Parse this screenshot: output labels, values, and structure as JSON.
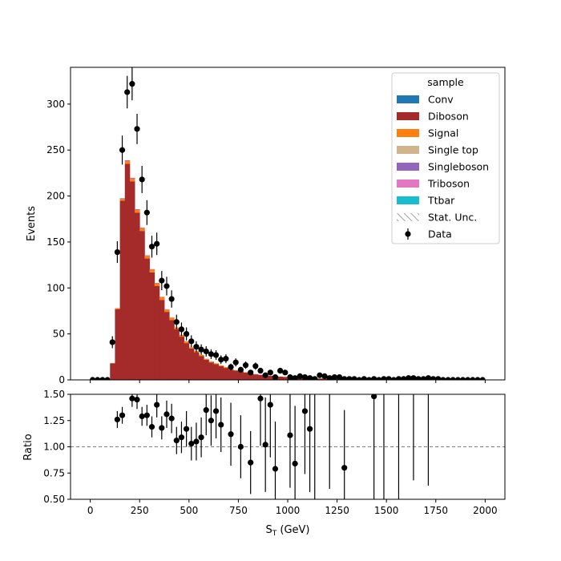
{
  "chart_data": [
    {
      "type": "bar",
      "stacked": true,
      "ylabel": "Events",
      "xlim": [
        -100,
        2100
      ],
      "ylim": [
        0,
        340
      ],
      "x_ticks": [
        0,
        250,
        500,
        750,
        1000,
        1250,
        1500,
        1750,
        2000
      ],
      "y_ticks": [
        0,
        50,
        100,
        150,
        200,
        250,
        300
      ],
      "bin_width": 25,
      "legend": {
        "title": "sample",
        "placement": "upper right",
        "entries": [
          {
            "label": "Conv",
            "color": "#1f77b4",
            "kind": "patch"
          },
          {
            "label": "Diboson",
            "color": "#a52a2a",
            "kind": "patch"
          },
          {
            "label": "Signal",
            "color": "#ff7f0e",
            "kind": "patch"
          },
          {
            "label": "Single top",
            "color": "#d2b48c",
            "kind": "patch"
          },
          {
            "label": "Singleboson",
            "color": "#9467bd",
            "kind": "patch"
          },
          {
            "label": "Triboson",
            "color": "#e377c2",
            "kind": "patch"
          },
          {
            "label": "Ttbar",
            "color": "#17becf",
            "kind": "patch"
          },
          {
            "label": "Stat. Unc.",
            "color": "#808080",
            "kind": "hatch"
          },
          {
            "label": "Data",
            "color": "#000000",
            "kind": "errorbar"
          }
        ]
      },
      "mc_diboson": [
        [
          100,
          18
        ],
        [
          125,
          77
        ],
        [
          150,
          195
        ],
        [
          175,
          235
        ],
        [
          200,
          216
        ],
        [
          225,
          182
        ],
        [
          250,
          162
        ],
        [
          275,
          132
        ],
        [
          300,
          117
        ],
        [
          325,
          102
        ],
        [
          350,
          87
        ],
        [
          375,
          74
        ],
        [
          400,
          65
        ],
        [
          425,
          55
        ],
        [
          450,
          47
        ],
        [
          475,
          40
        ],
        [
          500,
          34
        ],
        [
          525,
          30
        ],
        [
          550,
          26
        ],
        [
          575,
          22
        ],
        [
          600,
          19
        ],
        [
          625,
          17
        ],
        [
          650,
          15
        ],
        [
          675,
          13
        ],
        [
          700,
          11
        ],
        [
          725,
          10
        ],
        [
          750,
          9
        ],
        [
          775,
          8
        ],
        [
          800,
          7
        ],
        [
          825,
          6
        ],
        [
          850,
          5.5
        ],
        [
          875,
          5
        ],
        [
          900,
          4.5
        ],
        [
          925,
          4
        ],
        [
          950,
          3.6
        ],
        [
          975,
          3.2
        ],
        [
          1000,
          2.9
        ],
        [
          1025,
          2.6
        ],
        [
          1050,
          2.3
        ],
        [
          1075,
          2.1
        ],
        [
          1100,
          1.9
        ],
        [
          1125,
          1.7
        ],
        [
          1150,
          1.5
        ],
        [
          1175,
          1.4
        ],
        [
          1200,
          1.3
        ],
        [
          1225,
          1.2
        ],
        [
          1250,
          1.1
        ],
        [
          1275,
          1.0
        ],
        [
          1300,
          0.9
        ],
        [
          1325,
          0.8
        ],
        [
          1350,
          0.8
        ],
        [
          1375,
          0.7
        ],
        [
          1400,
          0.7
        ],
        [
          1425,
          0.6
        ],
        [
          1450,
          0.6
        ],
        [
          1475,
          0.5
        ],
        [
          1500,
          0.5
        ],
        [
          1525,
          0.5
        ],
        [
          1550,
          0.4
        ],
        [
          1575,
          0.4
        ],
        [
          1600,
          0.4
        ],
        [
          1625,
          0.3
        ],
        [
          1650,
          0.3
        ],
        [
          1675,
          0.3
        ],
        [
          1700,
          0.3
        ],
        [
          1725,
          0.2
        ],
        [
          1750,
          0.2
        ],
        [
          1775,
          0.2
        ],
        [
          1800,
          0.2
        ],
        [
          1825,
          0.2
        ],
        [
          1850,
          0.2
        ],
        [
          1875,
          0.1
        ],
        [
          1900,
          0.1
        ],
        [
          1925,
          0.1
        ],
        [
          1950,
          0.1
        ],
        [
          1975,
          0.1
        ]
      ],
      "mc_signal": [
        [
          100,
          0.3
        ],
        [
          125,
          1
        ],
        [
          150,
          2
        ],
        [
          175,
          3
        ],
        [
          200,
          3
        ],
        [
          225,
          3
        ],
        [
          250,
          3
        ],
        [
          275,
          3
        ],
        [
          300,
          3
        ],
        [
          325,
          3
        ],
        [
          350,
          3
        ],
        [
          375,
          2.5
        ],
        [
          400,
          2.5
        ],
        [
          425,
          2
        ],
        [
          450,
          2
        ],
        [
          475,
          2
        ],
        [
          500,
          1.5
        ],
        [
          525,
          1.5
        ],
        [
          550,
          1.2
        ],
        [
          575,
          1
        ],
        [
          600,
          1
        ],
        [
          625,
          1
        ],
        [
          650,
          0.8
        ],
        [
          675,
          0.8
        ],
        [
          700,
          0.6
        ],
        [
          725,
          0.5
        ],
        [
          750,
          0.5
        ],
        [
          775,
          0.4
        ],
        [
          800,
          0.4
        ],
        [
          825,
          0.3
        ]
      ],
      "mc_singleboson": [
        [
          150,
          0.6
        ],
        [
          175,
          0.8
        ],
        [
          200,
          0.8
        ],
        [
          225,
          0.7
        ],
        [
          250,
          0.6
        ],
        [
          275,
          0.5
        ],
        [
          300,
          0.5
        ],
        [
          325,
          0.4
        ],
        [
          350,
          0.4
        ],
        [
          375,
          0.3
        ],
        [
          400,
          0.3
        ]
      ],
      "data": [
        {
          "x": 12,
          "y": 0,
          "err": 0
        },
        {
          "x": 37,
          "y": 0,
          "err": 0
        },
        {
          "x": 62,
          "y": 0,
          "err": 0
        },
        {
          "x": 87,
          "y": 0,
          "err": 0
        },
        {
          "x": 112,
          "y": 41,
          "err": 6.5
        },
        {
          "x": 137,
          "y": 139,
          "err": 11.8
        },
        {
          "x": 162,
          "y": 250,
          "err": 15.8
        },
        {
          "x": 187,
          "y": 313,
          "err": 17.7
        },
        {
          "x": 212,
          "y": 322,
          "err": 17.9
        },
        {
          "x": 237,
          "y": 273,
          "err": 16.5
        },
        {
          "x": 262,
          "y": 218,
          "err": 14.8
        },
        {
          "x": 287,
          "y": 182,
          "err": 13.5
        },
        {
          "x": 312,
          "y": 145,
          "err": 12.0
        },
        {
          "x": 337,
          "y": 148,
          "err": 12.2
        },
        {
          "x": 362,
          "y": 108,
          "err": 10.4
        },
        {
          "x": 387,
          "y": 102,
          "err": 10.1
        },
        {
          "x": 412,
          "y": 88,
          "err": 9.4
        },
        {
          "x": 437,
          "y": 63,
          "err": 7.9
        },
        {
          "x": 462,
          "y": 55,
          "err": 7.4
        },
        {
          "x": 487,
          "y": 50,
          "err": 7.1
        },
        {
          "x": 512,
          "y": 42,
          "err": 6.5
        },
        {
          "x": 537,
          "y": 36,
          "err": 6.0
        },
        {
          "x": 562,
          "y": 33,
          "err": 5.7
        },
        {
          "x": 587,
          "y": 31,
          "err": 5.6
        },
        {
          "x": 612,
          "y": 28,
          "err": 5.3
        },
        {
          "x": 637,
          "y": 27,
          "err": 5.2
        },
        {
          "x": 662,
          "y": 22,
          "err": 4.7
        },
        {
          "x": 687,
          "y": 23,
          "err": 4.8
        },
        {
          "x": 712,
          "y": 14,
          "err": 3.7
        },
        {
          "x": 737,
          "y": 19,
          "err": 4.4
        },
        {
          "x": 762,
          "y": 11,
          "err": 3.3
        },
        {
          "x": 787,
          "y": 16,
          "err": 4.0
        },
        {
          "x": 812,
          "y": 8,
          "err": 2.8
        },
        {
          "x": 837,
          "y": 15,
          "err": 3.9
        },
        {
          "x": 862,
          "y": 10,
          "err": 3.2
        },
        {
          "x": 887,
          "y": 5,
          "err": 2.2
        },
        {
          "x": 912,
          "y": 8,
          "err": 2.8
        },
        {
          "x": 937,
          "y": 3,
          "err": 1.7
        },
        {
          "x": 962,
          "y": 10,
          "err": 3.2
        },
        {
          "x": 987,
          "y": 8,
          "err": 2.8
        },
        {
          "x": 1012,
          "y": 3,
          "err": 1.7
        },
        {
          "x": 1037,
          "y": 2,
          "err": 1.4
        },
        {
          "x": 1062,
          "y": 4,
          "err": 2.0
        },
        {
          "x": 1087,
          "y": 3,
          "err": 1.7
        },
        {
          "x": 1112,
          "y": 2,
          "err": 1.4
        },
        {
          "x": 1137,
          "y": 1,
          "err": 1.0
        },
        {
          "x": 1162,
          "y": 5,
          "err": 2.2
        },
        {
          "x": 1187,
          "y": 4,
          "err": 2.0
        },
        {
          "x": 1212,
          "y": 2,
          "err": 1.4
        },
        {
          "x": 1237,
          "y": 3,
          "err": 1.7
        },
        {
          "x": 1262,
          "y": 3,
          "err": 1.7
        },
        {
          "x": 1287,
          "y": 1,
          "err": 1.0
        },
        {
          "x": 1312,
          "y": 1,
          "err": 1.0
        },
        {
          "x": 1337,
          "y": 1,
          "err": 1.0
        },
        {
          "x": 1362,
          "y": 0,
          "err": 0
        },
        {
          "x": 1387,
          "y": 1,
          "err": 1.0
        },
        {
          "x": 1412,
          "y": 0,
          "err": 0
        },
        {
          "x": 1437,
          "y": 1,
          "err": 1.0
        },
        {
          "x": 1462,
          "y": 0,
          "err": 0
        },
        {
          "x": 1487,
          "y": 1,
          "err": 1.0
        },
        {
          "x": 1512,
          "y": 1,
          "err": 1.0
        },
        {
          "x": 1537,
          "y": 0,
          "err": 0
        },
        {
          "x": 1562,
          "y": 1,
          "err": 1.0
        },
        {
          "x": 1587,
          "y": 1,
          "err": 1.0
        },
        {
          "x": 1612,
          "y": 2,
          "err": 1.4
        },
        {
          "x": 1637,
          "y": 2,
          "err": 1.4
        },
        {
          "x": 1662,
          "y": 1,
          "err": 1.0
        },
        {
          "x": 1687,
          "y": 1,
          "err": 1.0
        },
        {
          "x": 1712,
          "y": 2,
          "err": 1.4
        },
        {
          "x": 1737,
          "y": 1,
          "err": 1.0
        },
        {
          "x": 1762,
          "y": 1,
          "err": 1.0
        },
        {
          "x": 1787,
          "y": 0,
          "err": 0
        },
        {
          "x": 1812,
          "y": 0,
          "err": 0
        },
        {
          "x": 1837,
          "y": 0,
          "err": 0
        },
        {
          "x": 1862,
          "y": 0,
          "err": 0
        },
        {
          "x": 1887,
          "y": 0,
          "err": 0
        },
        {
          "x": 1912,
          "y": 0,
          "err": 0
        },
        {
          "x": 1937,
          "y": 0,
          "err": 0
        },
        {
          "x": 1962,
          "y": 0,
          "err": 0
        },
        {
          "x": 1987,
          "y": 0,
          "err": 0
        }
      ]
    },
    {
      "type": "scatter",
      "xlabel": "S_T (GeV)",
      "ylabel": "Ratio",
      "xlim": [
        -100,
        2100
      ],
      "ylim": [
        0.5,
        1.5
      ],
      "x_ticks": [
        0,
        250,
        500,
        750,
        1000,
        1250,
        1500,
        1750,
        2000
      ],
      "y_ticks": [
        "0.50",
        "0.75",
        "1.00",
        "1.25",
        "1.50"
      ],
      "reference_line": 1.0,
      "points": [
        {
          "x": 137,
          "y": 1.26,
          "err": 0.08
        },
        {
          "x": 162,
          "y": 1.3,
          "err": 0.08
        },
        {
          "x": 212,
          "y": 1.46,
          "err": 0.08
        },
        {
          "x": 237,
          "y": 1.45,
          "err": 0.09
        },
        {
          "x": 262,
          "y": 1.29,
          "err": 0.09
        },
        {
          "x": 287,
          "y": 1.3,
          "err": 0.1
        },
        {
          "x": 312,
          "y": 1.19,
          "err": 0.1
        },
        {
          "x": 337,
          "y": 1.4,
          "err": 0.12
        },
        {
          "x": 362,
          "y": 1.18,
          "err": 0.11
        },
        {
          "x": 387,
          "y": 1.31,
          "err": 0.13
        },
        {
          "x": 412,
          "y": 1.27,
          "err": 0.14
        },
        {
          "x": 437,
          "y": 1.06,
          "err": 0.13
        },
        {
          "x": 462,
          "y": 1.09,
          "err": 0.15
        },
        {
          "x": 487,
          "y": 1.17,
          "err": 0.17
        },
        {
          "x": 512,
          "y": 1.03,
          "err": 0.16
        },
        {
          "x": 537,
          "y": 1.05,
          "err": 0.18
        },
        {
          "x": 562,
          "y": 1.09,
          "err": 0.19
        },
        {
          "x": 587,
          "y": 1.35,
          "err": 0.24
        },
        {
          "x": 612,
          "y": 1.25,
          "err": 0.24
        },
        {
          "x": 637,
          "y": 1.34,
          "err": 0.26
        },
        {
          "x": 662,
          "y": 1.21,
          "err": 0.26
        },
        {
          "x": 712,
          "y": 1.12,
          "err": 0.3
        },
        {
          "x": 762,
          "y": 1.0,
          "err": 0.3
        },
        {
          "x": 812,
          "y": 0.85,
          "err": 0.3
        },
        {
          "x": 862,
          "y": 1.46,
          "err": 0.45
        },
        {
          "x": 887,
          "y": 1.02,
          "err": 0.45
        },
        {
          "x": 912,
          "y": 1.4,
          "err": 0.5
        },
        {
          "x": 937,
          "y": 0.79,
          "err": 0.45
        },
        {
          "x": 1012,
          "y": 1.11,
          "err": 0.5
        },
        {
          "x": 1037,
          "y": 0.84,
          "err": 0.55
        },
        {
          "x": 1087,
          "y": 1.34,
          "err": 0.6
        },
        {
          "x": 1112,
          "y": 1.17,
          "err": 0.6
        },
        {
          "x": 1287,
          "y": 0.8,
          "err": 0.55
        },
        {
          "x": 1437,
          "y": 1.48,
          "err": 1.0
        }
      ],
      "error_only": [
        {
          "x": 1137,
          "lo": 0.5,
          "hi": 1.5
        },
        {
          "x": 1212,
          "lo": 0.6,
          "hi": 1.5
        },
        {
          "x": 1487,
          "lo": 0.5,
          "hi": 1.5
        },
        {
          "x": 1562,
          "lo": 0.5,
          "hi": 1.5
        },
        {
          "x": 1637,
          "lo": 0.68,
          "hi": 1.5
        },
        {
          "x": 1712,
          "lo": 0.63,
          "hi": 1.5
        }
      ]
    }
  ]
}
